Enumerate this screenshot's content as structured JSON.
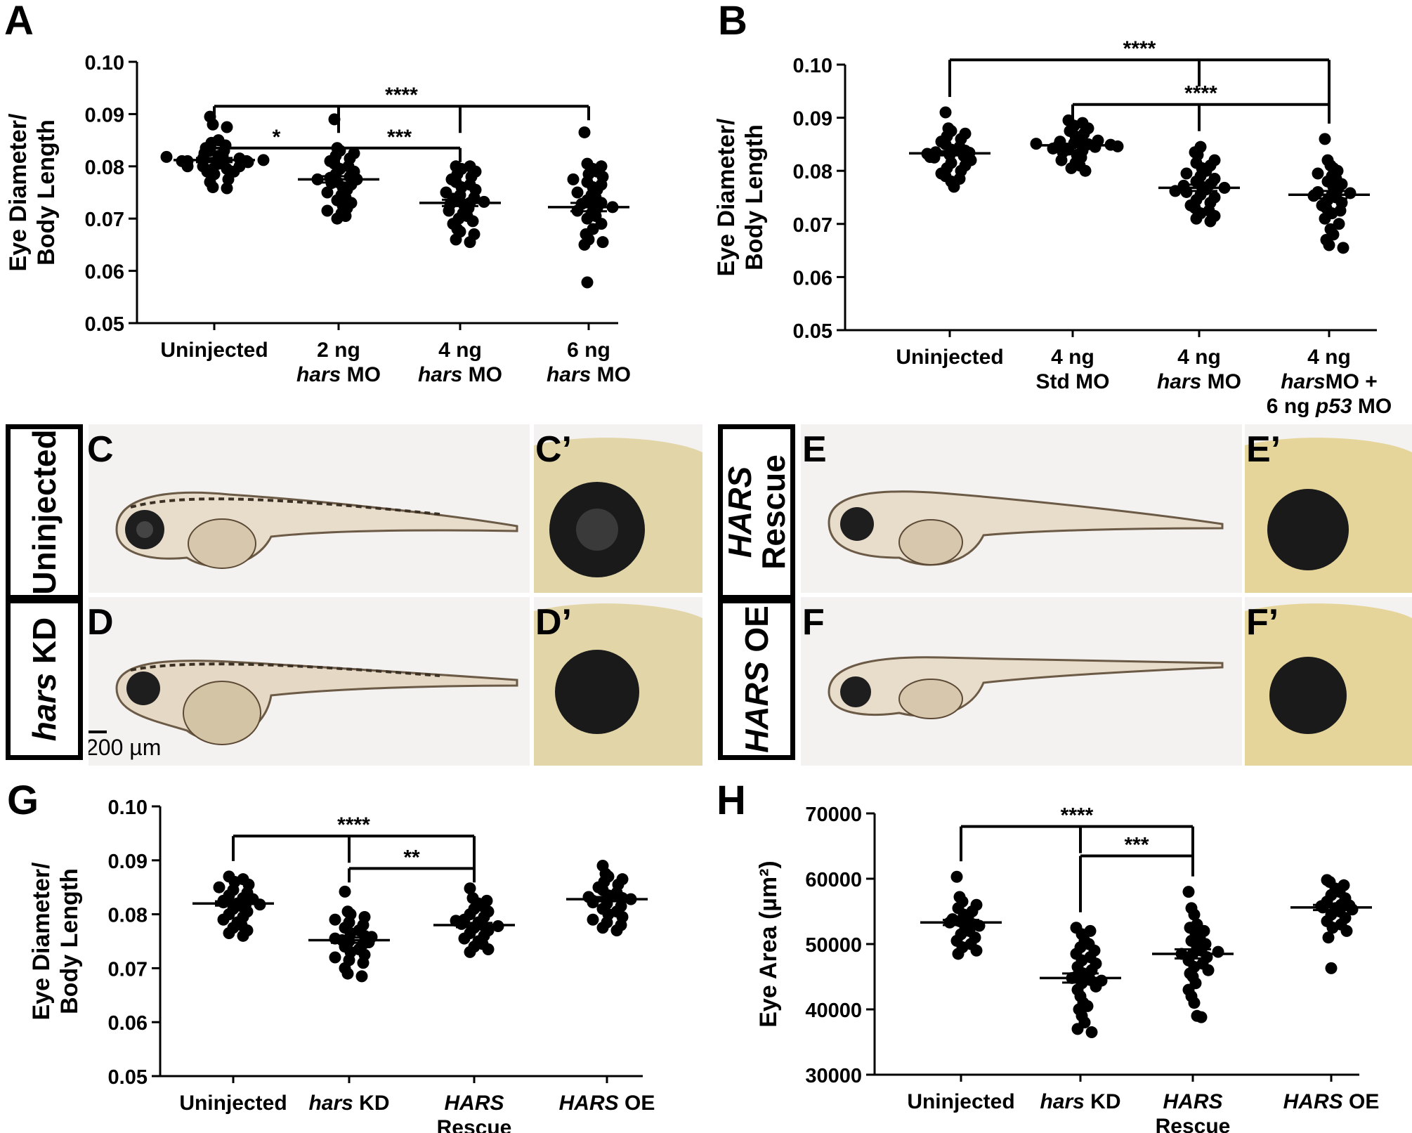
{
  "panel_labels": {
    "A": "A",
    "B": "B",
    "G": "G",
    "H": "H",
    "C": "C",
    "C_prime": "C’",
    "D": "D",
    "D_prime": "D’",
    "E": "E",
    "E_prime": "E’",
    "F": "F",
    "F_prime": "F’"
  },
  "image_rows": {
    "left_top": {
      "italic": "",
      "plain": "Uninjected"
    },
    "left_bottom": {
      "italic": "hars",
      "plain": " KD"
    },
    "right_top_line1": "HARS",
    "right_top_line2": "Rescue",
    "right_bottom": {
      "italic": "HARS",
      "plain": " OE"
    }
  },
  "scale_bar": "200 µm",
  "colors": {
    "points": "#000000",
    "axis": "#000000",
    "background": "#ffffff"
  },
  "chart_data": [
    {
      "id": "A",
      "type": "scatter",
      "ylabel_line1": "Eye  Diameter/",
      "ylabel_line2": "Body Length",
      "ylim": [
        0.05,
        0.1
      ],
      "yticks": [
        "0.05",
        "0.06",
        "0.07",
        "0.08",
        "0.09",
        "0.10"
      ],
      "categories": [
        [
          {
            "t": "Uninjected",
            "i": false
          }
        ],
        [
          {
            "t": "2 ng",
            "i": false
          }
        ],
        [
          {
            "t": "4 ng",
            "i": false
          }
        ],
        [
          {
            "t": "6 ng",
            "i": false
          }
        ]
      ],
      "categories_line2": [
        [],
        [
          {
            "t": "hars",
            "i": true
          },
          {
            "t": " MO",
            "i": false
          }
        ],
        [
          {
            "t": "hars",
            "i": true
          },
          {
            "t": " MO",
            "i": false
          }
        ],
        [
          {
            "t": "hars",
            "i": true
          },
          {
            "t": " MO",
            "i": false
          }
        ]
      ],
      "categories_line3": [
        [],
        [],
        [],
        []
      ],
      "means": [
        0.0812,
        0.0775,
        0.073,
        0.0722
      ],
      "sem": [
        0.0004,
        0.0006,
        0.0006,
        0.0008
      ],
      "values": [
        [
          0.0895,
          0.088,
          0.0875,
          0.085,
          0.0845,
          0.084,
          0.0835,
          0.083,
          0.083,
          0.0825,
          0.082,
          0.082,
          0.0815,
          0.0815,
          0.081,
          0.081,
          0.081,
          0.0805,
          0.0805,
          0.08,
          0.08,
          0.08,
          0.0795,
          0.0795,
          0.079,
          0.079,
          0.0785,
          0.0775,
          0.077,
          0.076,
          0.0758,
          0.0812,
          0.0818,
          0.0808
        ],
        [
          0.089,
          0.0835,
          0.083,
          0.0825,
          0.082,
          0.0815,
          0.081,
          0.0805,
          0.08,
          0.0795,
          0.079,
          0.0785,
          0.078,
          0.0778,
          0.0775,
          0.077,
          0.0765,
          0.076,
          0.0755,
          0.075,
          0.0745,
          0.074,
          0.0735,
          0.073,
          0.0725,
          0.072,
          0.0715,
          0.071,
          0.0705,
          0.07,
          0.0775,
          0.0768
        ],
        [
          0.08,
          0.08,
          0.0795,
          0.079,
          0.0785,
          0.078,
          0.0775,
          0.077,
          0.0765,
          0.076,
          0.0755,
          0.075,
          0.0745,
          0.074,
          0.0735,
          0.073,
          0.0728,
          0.0725,
          0.072,
          0.0715,
          0.071,
          0.0705,
          0.07,
          0.0695,
          0.069,
          0.068,
          0.0675,
          0.067,
          0.066,
          0.0655,
          0.0732,
          0.0738
        ],
        [
          0.0865,
          0.0805,
          0.08,
          0.0795,
          0.079,
          0.0785,
          0.078,
          0.0775,
          0.077,
          0.0765,
          0.076,
          0.0755,
          0.075,
          0.0745,
          0.074,
          0.0735,
          0.073,
          0.0725,
          0.072,
          0.0715,
          0.071,
          0.0705,
          0.07,
          0.069,
          0.068,
          0.067,
          0.066,
          0.0655,
          0.065,
          0.0578,
          0.0722,
          0.0728
        ]
      ],
      "brackets": [
        {
          "left": 0,
          "right": 1,
          "level": 0.0835,
          "star": "*"
        },
        {
          "left": 1,
          "right": 2,
          "level": 0.0835,
          "star": "***"
        },
        {
          "left": 0,
          "right": 3,
          "level": 0.0915,
          "star": "****",
          "nested_ends": [
            1,
            2
          ]
        }
      ]
    },
    {
      "id": "B",
      "type": "scatter",
      "ylabel_line1": "Eye  Diameter/",
      "ylabel_line2": "Body Length",
      "ylim": [
        0.05,
        0.1
      ],
      "yticks": [
        "0.05",
        "0.06",
        "0.07",
        "0.08",
        "0.09",
        "0.10"
      ],
      "categories": [
        [
          {
            "t": "Uninjected",
            "i": false
          }
        ],
        [
          {
            "t": "4 ng",
            "i": false
          }
        ],
        [
          {
            "t": "4 ng",
            "i": false
          }
        ],
        [
          {
            "t": "4 ng",
            "i": false
          }
        ]
      ],
      "categories_line2": [
        [],
        [
          {
            "t": "Std MO",
            "i": false
          }
        ],
        [
          {
            "t": "hars",
            "i": true
          },
          {
            "t": " MO",
            "i": false
          }
        ],
        [
          {
            "t": "hars",
            "i": true
          },
          {
            "t": "MO +",
            "i": false
          }
        ]
      ],
      "categories_line3": [
        [],
        [],
        [],
        [
          {
            "t": "6 ng ",
            "i": false
          },
          {
            "t": "p53",
            "i": true
          },
          {
            "t": " MO",
            "i": false
          }
        ]
      ],
      "means": [
        0.0833,
        0.0848,
        0.0768,
        0.0755
      ],
      "sem": [
        0.0004,
        0.0003,
        0.0006,
        0.0007
      ],
      "values": [
        [
          0.091,
          0.088,
          0.0875,
          0.087,
          0.0865,
          0.086,
          0.0855,
          0.085,
          0.0845,
          0.084,
          0.0838,
          0.0835,
          0.083,
          0.0828,
          0.0825,
          0.082,
          0.0815,
          0.081,
          0.0805,
          0.08,
          0.0795,
          0.079,
          0.0785,
          0.078,
          0.077,
          0.0834,
          0.0832,
          0.0826
        ],
        [
          0.0895,
          0.089,
          0.0885,
          0.088,
          0.0875,
          0.087,
          0.0865,
          0.086,
          0.0855,
          0.0852,
          0.085,
          0.0848,
          0.0845,
          0.0842,
          0.084,
          0.0838,
          0.0835,
          0.083,
          0.0825,
          0.082,
          0.0815,
          0.081,
          0.0805,
          0.08,
          0.0849,
          0.0851,
          0.0846,
          0.0857
        ],
        [
          0.0835,
          0.083,
          0.0845,
          0.082,
          0.0815,
          0.081,
          0.0805,
          0.08,
          0.0795,
          0.079,
          0.0785,
          0.078,
          0.0775,
          0.077,
          0.0765,
          0.076,
          0.0755,
          0.075,
          0.0745,
          0.074,
          0.0735,
          0.073,
          0.0725,
          0.072,
          0.0715,
          0.071,
          0.0705,
          0.0768,
          0.0772,
          0.0762
        ],
        [
          0.086,
          0.082,
          0.081,
          0.0805,
          0.08,
          0.0795,
          0.079,
          0.0785,
          0.078,
          0.0775,
          0.077,
          0.0765,
          0.076,
          0.0755,
          0.075,
          0.0745,
          0.074,
          0.0735,
          0.073,
          0.0725,
          0.072,
          0.071,
          0.07,
          0.069,
          0.068,
          0.067,
          0.066,
          0.0655,
          0.0753,
          0.0758
        ]
      ],
      "brackets": [
        {
          "left": 1,
          "right": 3,
          "level": 0.0925,
          "star": "****",
          "nested_ends": [
            2
          ]
        },
        {
          "left": 0,
          "right": 3,
          "level": 0.1009,
          "star": "****",
          "nested_ends": [
            2
          ]
        }
      ]
    },
    {
      "id": "G",
      "type": "scatter",
      "ylabel_line1": "Eye  Diameter/",
      "ylabel_line2": "Body Length",
      "ylim": [
        0.05,
        0.1
      ],
      "yticks": [
        "0.05",
        "0.06",
        "0.07",
        "0.08",
        "0.09",
        "0.10"
      ],
      "categories": [
        [
          {
            "t": "Uninjected",
            "i": false
          }
        ],
        [
          {
            "t": "hars",
            "i": true
          },
          {
            "t": " KD",
            "i": false
          }
        ],
        [
          {
            "t": "HARS",
            "i": true
          }
        ],
        [
          {
            "t": "HARS",
            "i": true
          },
          {
            "t": " OE",
            "i": false
          }
        ]
      ],
      "categories_line2": [
        [],
        [],
        [
          {
            "t": "Rescue",
            "i": false
          }
        ],
        []
      ],
      "categories_line3": [
        [],
        [],
        [],
        []
      ],
      "means": [
        0.082,
        0.0752,
        0.078,
        0.0828
      ],
      "sem": [
        0.0004,
        0.0005,
        0.0004,
        0.0004
      ],
      "values": [
        [
          0.087,
          0.0865,
          0.086,
          0.0855,
          0.085,
          0.0845,
          0.084,
          0.0835,
          0.083,
          0.0825,
          0.082,
          0.0815,
          0.081,
          0.0805,
          0.08,
          0.0795,
          0.079,
          0.0785,
          0.078,
          0.0775,
          0.077,
          0.0765,
          0.076,
          0.0822,
          0.0818,
          0.0828
        ],
        [
          0.0842,
          0.0805,
          0.08,
          0.0795,
          0.079,
          0.0785,
          0.078,
          0.0775,
          0.077,
          0.0765,
          0.076,
          0.0755,
          0.075,
          0.0745,
          0.074,
          0.0735,
          0.073,
          0.0725,
          0.072,
          0.0715,
          0.071,
          0.07,
          0.069,
          0.0685,
          0.0752,
          0.0748,
          0.0758
        ],
        [
          0.0848,
          0.083,
          0.0825,
          0.082,
          0.0815,
          0.081,
          0.0805,
          0.08,
          0.0795,
          0.079,
          0.0785,
          0.078,
          0.0775,
          0.077,
          0.0765,
          0.076,
          0.0755,
          0.075,
          0.0745,
          0.074,
          0.0735,
          0.073,
          0.0782,
          0.0778,
          0.0788
        ],
        [
          0.089,
          0.0875,
          0.087,
          0.0865,
          0.086,
          0.0855,
          0.085,
          0.0845,
          0.084,
          0.0835,
          0.083,
          0.0825,
          0.082,
          0.0815,
          0.081,
          0.0805,
          0.08,
          0.0795,
          0.079,
          0.0785,
          0.078,
          0.0775,
          0.077,
          0.0828,
          0.0832,
          0.0822
        ]
      ],
      "brackets": [
        {
          "left": 1,
          "right": 2,
          "level": 0.0885,
          "star": "**"
        },
        {
          "left": 0,
          "right": 2,
          "level": 0.0945,
          "star": "****",
          "nested_ends": [
            1
          ]
        }
      ]
    },
    {
      "id": "H",
      "type": "scatter",
      "ylabel_line1": "Eye  Area (µm²)",
      "ylabel_line2": "",
      "ylim": [
        30000,
        70000
      ],
      "yticks": [
        "30000",
        "40000",
        "50000",
        "60000",
        "70000"
      ],
      "categories": [
        [
          {
            "t": "Uninjected",
            "i": false
          }
        ],
        [
          {
            "t": "hars",
            "i": true
          },
          {
            "t": " KD",
            "i": false
          }
        ],
        [
          {
            "t": "HARS",
            "i": true
          }
        ],
        [
          {
            "t": "HARS",
            "i": true
          },
          {
            "t": " OE",
            "i": false
          }
        ]
      ],
      "categories_line2": [
        [],
        [],
        [
          {
            "t": "Rescue",
            "i": false
          }
        ],
        []
      ],
      "categories_line3": [
        [],
        [],
        [],
        []
      ],
      "means": [
        53300,
        44800,
        48500,
        55600
      ],
      "sem": [
        400,
        700,
        700,
        400
      ],
      "values": [
        [
          60300,
          57200,
          56500,
          56000,
          55500,
          55000,
          54500,
          54000,
          53500,
          53000,
          52500,
          52000,
          51500,
          51000,
          50500,
          50000,
          49500,
          49000,
          48500,
          53300,
          53800,
          52800
        ],
        [
          52500,
          52000,
          51500,
          50500,
          50000,
          49500,
          49000,
          48500,
          48000,
          47500,
          47000,
          46500,
          46000,
          45500,
          45000,
          44500,
          44000,
          43500,
          43000,
          42000,
          41000,
          40500,
          40000,
          39000,
          38000,
          37000,
          36500,
          44800,
          45200,
          44400
        ],
        [
          58000,
          55500,
          54500,
          53000,
          52500,
          52000,
          51500,
          51000,
          50500,
          50000,
          49500,
          49000,
          48500,
          48000,
          47500,
          47000,
          46500,
          46000,
          45500,
          45000,
          44000,
          43000,
          42000,
          41000,
          39000,
          38800,
          48500,
          48800
        ],
        [
          59800,
          59500,
          59000,
          58500,
          58000,
          57500,
          57000,
          56500,
          56000,
          55800,
          55500,
          55000,
          54500,
          54000,
          53500,
          53000,
          52500,
          52000,
          51000,
          46300,
          55600,
          55900,
          55300
        ]
      ],
      "brackets": [
        {
          "left": 1,
          "right": 2,
          "level": 63500,
          "star": "***"
        },
        {
          "left": 0,
          "right": 2,
          "level": 68000,
          "star": "****",
          "nested_ends": [
            1
          ]
        }
      ]
    }
  ]
}
